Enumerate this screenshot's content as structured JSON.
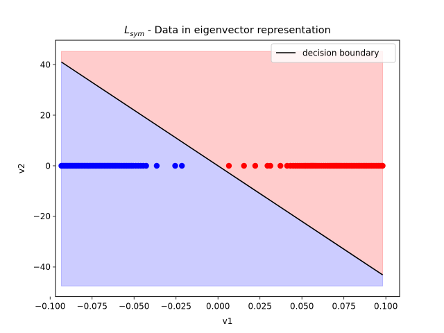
{
  "chart_data": {
    "type": "scatter",
    "title": {
      "symbol": "L",
      "subscript": "sym",
      "rest": " - Data in eigenvector representation"
    },
    "xlabel": "v1",
    "ylabel": "v2",
    "xlim": [
      -0.0968,
      0.1082
    ],
    "ylim": [
      -51.7,
      49.6
    ],
    "xticks": [
      -0.1,
      -0.075,
      -0.05,
      -0.025,
      0.0,
      0.025,
      0.05,
      0.075,
      0.1
    ],
    "xtick_labels": [
      "−0.100",
      "−0.075",
      "−0.050",
      "−0.025",
      "0.000",
      "0.025",
      "0.050",
      "0.075",
      "0.100"
    ],
    "yticks": [
      -40,
      -20,
      0,
      20,
      40
    ],
    "ytick_labels": [
      "−40",
      "−20",
      "0",
      "20",
      "40"
    ],
    "grid": false,
    "legend": {
      "placement": "top-right",
      "entries": [
        "decision boundary"
      ]
    },
    "regions": [
      {
        "class": "positive",
        "color": "#ff0000",
        "alpha": 0.2,
        "x_range": [
          -0.0933,
          0.0981
        ],
        "y_range": [
          -47.5,
          45.2
        ]
      },
      {
        "class": "negative",
        "color": "#0000ff",
        "alpha": 0.2,
        "x_range": [
          -0.0933,
          0.0981
        ],
        "y_range": [
          -47.5,
          45.2
        ]
      }
    ],
    "decision_boundary": {
      "name": "decision boundary",
      "color": "#000000",
      "x": [
        -0.0933,
        0.0981
      ],
      "y": [
        41.0,
        -43.1
      ]
    },
    "series": [
      {
        "class": "negative",
        "color": "#0000ff",
        "x": [
          -0.0933,
          -0.0925,
          -0.0918,
          -0.091,
          -0.0903,
          -0.0895,
          -0.0887,
          -0.088,
          -0.0872,
          -0.0865,
          -0.0857,
          -0.085,
          -0.0842,
          -0.0835,
          -0.0828,
          -0.082,
          -0.0812,
          -0.0805,
          -0.0797,
          -0.079,
          -0.0782,
          -0.0775,
          -0.0767,
          -0.076,
          -0.0752,
          -0.0745,
          -0.0738,
          -0.073,
          -0.0722,
          -0.0715,
          -0.0707,
          -0.07,
          -0.0692,
          -0.0685,
          -0.0677,
          -0.067,
          -0.0662,
          -0.0655,
          -0.0648,
          -0.064,
          -0.0632,
          -0.0625,
          -0.0617,
          -0.061,
          -0.0602,
          -0.0595,
          -0.0585,
          -0.0575,
          -0.0565,
          -0.0555,
          -0.0545,
          -0.0535,
          -0.0525,
          -0.0515,
          -0.0505,
          -0.049,
          -0.0475,
          -0.046,
          -0.0445,
          -0.0428,
          -0.0365,
          -0.0255,
          -0.0215
        ],
        "y": [
          0,
          0,
          0,
          0,
          0,
          0,
          0,
          0,
          0,
          0,
          0,
          0,
          0,
          0,
          0,
          0,
          0,
          0,
          0,
          0,
          0,
          0,
          0,
          0,
          0,
          0,
          0,
          0,
          0,
          0,
          0,
          0,
          0,
          0,
          0,
          0,
          0,
          0,
          0,
          0,
          0,
          0,
          0,
          0,
          0,
          0,
          0,
          0,
          0,
          0,
          0,
          0,
          0,
          0,
          0,
          0,
          0,
          0,
          0,
          0,
          0,
          0,
          0
        ]
      },
      {
        "class": "positive",
        "color": "#ff0000",
        "x": [
          0.0065,
          0.0155,
          0.0222,
          0.0295,
          0.0312,
          0.0372,
          0.0412,
          0.0432,
          0.0448,
          0.0462,
          0.0475,
          0.0488,
          0.05,
          0.0512,
          0.0522,
          0.0532,
          0.0542,
          0.0552,
          0.0558,
          0.0565,
          0.0572,
          0.058,
          0.059,
          0.0602,
          0.0615,
          0.0628,
          0.064,
          0.0652,
          0.0662,
          0.0672,
          0.068,
          0.0688,
          0.0696,
          0.0703,
          0.071,
          0.0718,
          0.0726,
          0.0735,
          0.0745,
          0.0755,
          0.0765,
          0.0775,
          0.0785,
          0.0795,
          0.0805,
          0.0815,
          0.0825,
          0.0835,
          0.0845,
          0.0855,
          0.0865,
          0.0875,
          0.0885,
          0.0895,
          0.0905,
          0.0915,
          0.0925,
          0.0935,
          0.0945,
          0.0955,
          0.0965,
          0.0975,
          0.0981
        ],
        "y": [
          0,
          0,
          0,
          0,
          0,
          0,
          0,
          0,
          0,
          0,
          0,
          0,
          0,
          0,
          0,
          0,
          0,
          0,
          0,
          0,
          0,
          0,
          0,
          0,
          0,
          0,
          0,
          0,
          0,
          0,
          0,
          0,
          0,
          0,
          0,
          0,
          0,
          0,
          0,
          0,
          0,
          0,
          0,
          0,
          0,
          0,
          0,
          0,
          0,
          0,
          0,
          0,
          0,
          0,
          0,
          0,
          0,
          0,
          0,
          0,
          0,
          0,
          0
        ]
      }
    ]
  }
}
